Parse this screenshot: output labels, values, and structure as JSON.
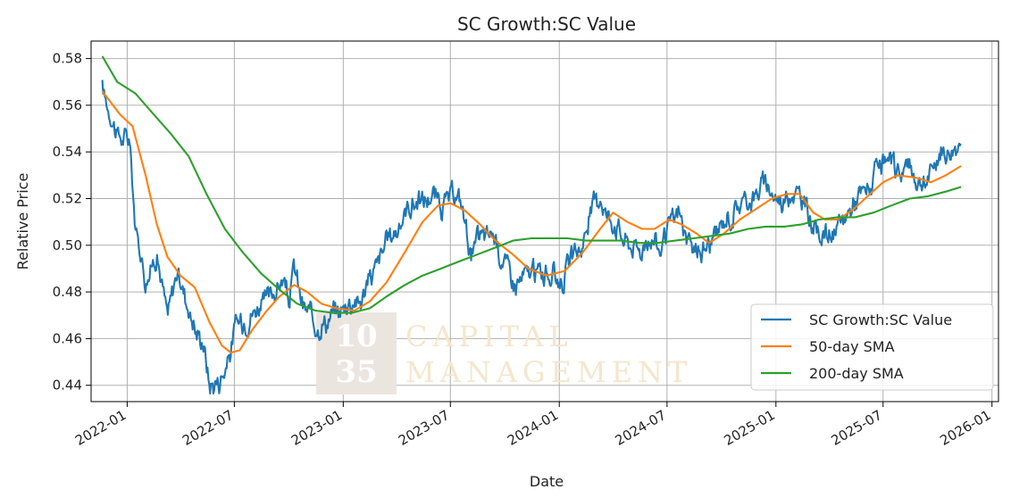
{
  "chart_data": {
    "type": "line",
    "title": "SC Growth:SC Value",
    "xlabel": "Date",
    "ylabel": "Relative Price",
    "ylim": [
      0.433,
      0.5875
    ],
    "yticks": [
      0.44,
      0.46,
      0.48,
      0.5,
      0.52,
      0.54,
      0.56,
      0.58
    ],
    "xticks": [
      "2022-01",
      "2022-07",
      "2023-01",
      "2023-07",
      "2024-01",
      "2024-07",
      "2025-01",
      "2025-07",
      "2026-01"
    ],
    "xrange": [
      "2021-11-01",
      "2026-01-12"
    ],
    "grid": true,
    "legend_position": "lower-right",
    "watermark": {
      "logo": "10 35",
      "line1": "CAPITAL",
      "line2": "MANAGEMENT"
    },
    "series": [
      {
        "name": "SC Growth:SC Value",
        "color": "#1f77b4",
        "noisy": true,
        "points": [
          [
            "2021-11-20",
            0.567
          ],
          [
            "2021-12-15",
            0.548
          ],
          [
            "2022-01-05",
            0.545
          ],
          [
            "2022-01-15",
            0.505
          ],
          [
            "2022-02-01",
            0.485
          ],
          [
            "2022-02-20",
            0.497
          ],
          [
            "2022-03-10",
            0.468
          ],
          [
            "2022-03-25",
            0.488
          ],
          [
            "2022-04-10",
            0.478
          ],
          [
            "2022-04-28",
            0.462
          ],
          [
            "2022-05-10",
            0.458
          ],
          [
            "2022-05-20",
            0.44
          ],
          [
            "2022-06-05",
            0.442
          ],
          [
            "2022-06-20",
            0.452
          ],
          [
            "2022-07-05",
            0.466
          ],
          [
            "2022-07-25",
            0.47
          ],
          [
            "2022-08-15",
            0.476
          ],
          [
            "2022-09-05",
            0.48
          ],
          [
            "2022-09-20",
            0.485
          ],
          [
            "2022-10-01",
            0.475
          ],
          [
            "2022-10-10",
            0.49
          ],
          [
            "2022-10-25",
            0.473
          ],
          [
            "2022-11-10",
            0.468
          ],
          [
            "2022-12-01",
            0.469
          ],
          [
            "2022-12-20",
            0.47
          ],
          [
            "2023-01-10",
            0.476
          ],
          [
            "2023-02-01",
            0.478
          ],
          [
            "2023-02-20",
            0.488
          ],
          [
            "2023-03-10",
            0.5
          ],
          [
            "2023-04-01",
            0.506
          ],
          [
            "2023-04-20",
            0.516
          ],
          [
            "2023-05-10",
            0.519
          ],
          [
            "2023-06-01",
            0.52
          ],
          [
            "2023-06-15",
            0.514
          ],
          [
            "2023-07-01",
            0.519
          ],
          [
            "2023-07-20",
            0.516
          ],
          [
            "2023-08-05",
            0.496
          ],
          [
            "2023-08-20",
            0.504
          ],
          [
            "2023-09-10",
            0.506
          ],
          [
            "2023-10-01",
            0.494
          ],
          [
            "2023-10-20",
            0.485
          ],
          [
            "2023-11-05",
            0.487
          ],
          [
            "2023-11-25",
            0.488
          ],
          [
            "2023-12-15",
            0.487
          ],
          [
            "2024-01-05",
            0.486
          ],
          [
            "2024-01-20",
            0.494
          ],
          [
            "2024-02-10",
            0.502
          ],
          [
            "2024-02-25",
            0.514
          ],
          [
            "2024-03-10",
            0.522
          ],
          [
            "2024-03-25",
            0.513
          ],
          [
            "2024-04-10",
            0.508
          ],
          [
            "2024-04-25",
            0.503
          ],
          [
            "2024-05-10",
            0.5
          ],
          [
            "2024-06-01",
            0.502
          ],
          [
            "2024-06-20",
            0.498
          ],
          [
            "2024-07-05",
            0.51
          ],
          [
            "2024-07-20",
            0.515
          ],
          [
            "2024-08-05",
            0.5
          ],
          [
            "2024-08-25",
            0.497
          ],
          [
            "2024-09-15",
            0.502
          ],
          [
            "2024-10-01",
            0.507
          ],
          [
            "2024-10-20",
            0.512
          ],
          [
            "2024-11-10",
            0.519
          ],
          [
            "2024-11-25",
            0.522
          ],
          [
            "2024-12-10",
            0.526
          ],
          [
            "2024-12-25",
            0.522
          ],
          [
            "2025-01-10",
            0.519
          ],
          [
            "2025-01-25",
            0.524
          ],
          [
            "2025-02-10",
            0.52
          ],
          [
            "2025-02-25",
            0.514
          ],
          [
            "2025-03-10",
            0.506
          ],
          [
            "2025-03-25",
            0.505
          ],
          [
            "2025-04-10",
            0.504
          ],
          [
            "2025-04-25",
            0.51
          ],
          [
            "2025-05-10",
            0.518
          ],
          [
            "2025-05-25",
            0.522
          ],
          [
            "2025-06-10",
            0.526
          ],
          [
            "2025-06-25",
            0.533
          ],
          [
            "2025-07-10",
            0.534
          ],
          [
            "2025-07-25",
            0.531
          ],
          [
            "2025-08-10",
            0.534
          ],
          [
            "2025-08-25",
            0.527
          ],
          [
            "2025-09-10",
            0.524
          ],
          [
            "2025-09-25",
            0.534
          ],
          [
            "2025-10-10",
            0.54
          ],
          [
            "2025-10-25",
            0.538
          ],
          [
            "2025-11-05",
            0.542
          ],
          [
            "2025-11-10",
            0.549
          ]
        ]
      },
      {
        "name": "50-day SMA",
        "color": "#ff7f0e",
        "noisy": false,
        "points": [
          [
            "2021-11-20",
            0.566
          ],
          [
            "2021-12-20",
            0.556
          ],
          [
            "2022-01-10",
            0.551
          ],
          [
            "2022-02-01",
            0.53
          ],
          [
            "2022-02-20",
            0.509
          ],
          [
            "2022-03-10",
            0.495
          ],
          [
            "2022-04-01",
            0.487
          ],
          [
            "2022-04-25",
            0.482
          ],
          [
            "2022-05-20",
            0.467
          ],
          [
            "2022-06-10",
            0.457
          ],
          [
            "2022-06-25",
            0.454
          ],
          [
            "2022-07-10",
            0.455
          ],
          [
            "2022-08-01",
            0.464
          ],
          [
            "2022-08-25",
            0.472
          ],
          [
            "2022-09-15",
            0.478
          ],
          [
            "2022-10-10",
            0.483
          ],
          [
            "2022-11-01",
            0.48
          ],
          [
            "2022-11-25",
            0.475
          ],
          [
            "2022-12-20",
            0.473
          ],
          [
            "2023-01-20",
            0.472
          ],
          [
            "2023-02-15",
            0.476
          ],
          [
            "2023-03-15",
            0.484
          ],
          [
            "2023-04-15",
            0.497
          ],
          [
            "2023-05-15",
            0.51
          ],
          [
            "2023-06-10",
            0.517
          ],
          [
            "2023-07-01",
            0.518
          ],
          [
            "2023-07-25",
            0.515
          ],
          [
            "2023-08-20",
            0.509
          ],
          [
            "2023-09-15",
            0.502
          ],
          [
            "2023-10-15",
            0.496
          ],
          [
            "2023-11-10",
            0.49
          ],
          [
            "2023-12-10",
            0.487
          ],
          [
            "2024-01-10",
            0.489
          ],
          [
            "2024-02-10",
            0.497
          ],
          [
            "2024-03-10",
            0.507
          ],
          [
            "2024-04-01",
            0.514
          ],
          [
            "2024-04-25",
            0.51
          ],
          [
            "2024-05-20",
            0.507
          ],
          [
            "2024-06-10",
            0.507
          ],
          [
            "2024-07-05",
            0.511
          ],
          [
            "2024-07-25",
            0.509
          ],
          [
            "2024-08-20",
            0.505
          ],
          [
            "2024-09-10",
            0.501
          ],
          [
            "2024-10-05",
            0.505
          ],
          [
            "2024-11-01",
            0.511
          ],
          [
            "2024-12-01",
            0.516
          ],
          [
            "2024-12-25",
            0.52
          ],
          [
            "2025-01-20",
            0.522
          ],
          [
            "2025-02-10",
            0.522
          ],
          [
            "2025-03-05",
            0.514
          ],
          [
            "2025-03-25",
            0.511
          ],
          [
            "2025-04-15",
            0.511
          ],
          [
            "2025-05-10",
            0.515
          ],
          [
            "2025-06-05",
            0.521
          ],
          [
            "2025-07-01",
            0.527
          ],
          [
            "2025-07-25",
            0.53
          ],
          [
            "2025-08-25",
            0.529
          ],
          [
            "2025-09-20",
            0.527
          ],
          [
            "2025-10-15",
            0.53
          ],
          [
            "2025-11-10",
            0.534
          ]
        ]
      },
      {
        "name": "200-day SMA",
        "color": "#2ca02c",
        "noisy": false,
        "points": [
          [
            "2021-11-20",
            0.581
          ],
          [
            "2021-12-15",
            0.57
          ],
          [
            "2022-01-15",
            0.565
          ],
          [
            "2022-02-15",
            0.556
          ],
          [
            "2022-03-15",
            0.548
          ],
          [
            "2022-04-15",
            0.538
          ],
          [
            "2022-05-15",
            0.522
          ],
          [
            "2022-06-15",
            0.507
          ],
          [
            "2022-07-15",
            0.497
          ],
          [
            "2022-08-15",
            0.488
          ],
          [
            "2022-09-15",
            0.481
          ],
          [
            "2022-10-15",
            0.475
          ],
          [
            "2022-11-15",
            0.472
          ],
          [
            "2022-12-15",
            0.471
          ],
          [
            "2023-01-15",
            0.471
          ],
          [
            "2023-02-15",
            0.473
          ],
          [
            "2023-03-15",
            0.478
          ],
          [
            "2023-04-15",
            0.483
          ],
          [
            "2023-05-15",
            0.487
          ],
          [
            "2023-06-15",
            0.49
          ],
          [
            "2023-07-15",
            0.493
          ],
          [
            "2023-08-15",
            0.496
          ],
          [
            "2023-09-15",
            0.499
          ],
          [
            "2023-10-15",
            0.502
          ],
          [
            "2023-11-15",
            0.503
          ],
          [
            "2023-12-15",
            0.503
          ],
          [
            "2024-01-15",
            0.503
          ],
          [
            "2024-02-15",
            0.502
          ],
          [
            "2024-03-15",
            0.502
          ],
          [
            "2024-04-15",
            0.502
          ],
          [
            "2024-05-15",
            0.501
          ],
          [
            "2024-06-15",
            0.501
          ],
          [
            "2024-07-15",
            0.502
          ],
          [
            "2024-08-15",
            0.503
          ],
          [
            "2024-09-15",
            0.504
          ],
          [
            "2024-10-15",
            0.505
          ],
          [
            "2024-11-15",
            0.507
          ],
          [
            "2024-12-15",
            0.508
          ],
          [
            "2025-01-15",
            0.508
          ],
          [
            "2025-02-15",
            0.509
          ],
          [
            "2025-03-15",
            0.511
          ],
          [
            "2025-04-15",
            0.512
          ],
          [
            "2025-05-15",
            0.512
          ],
          [
            "2025-06-15",
            0.514
          ],
          [
            "2025-07-15",
            0.517
          ],
          [
            "2025-08-15",
            0.52
          ],
          [
            "2025-09-15",
            0.521
          ],
          [
            "2025-10-15",
            0.523
          ],
          [
            "2025-11-10",
            0.525
          ]
        ]
      }
    ]
  }
}
